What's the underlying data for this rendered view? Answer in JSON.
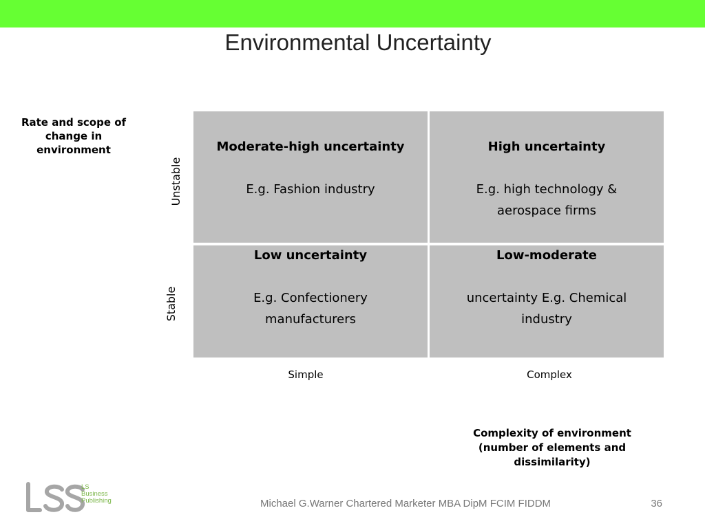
{
  "slide": {
    "title": "Environmental Uncertainty",
    "accent_color": "#66ff33",
    "cell_color": "#bfbfbf"
  },
  "y_axis": {
    "title": "Rate and scope of change in environment",
    "labels": [
      "Unstable",
      "Stable"
    ]
  },
  "x_axis": {
    "title": "Complexity of environment (number of elements and dissimilarity)",
    "labels": [
      "Simple",
      "Complex"
    ]
  },
  "matrix": {
    "top_left": {
      "heading": "Moderate-high uncertainty",
      "example": "E.g. Fashion industry"
    },
    "top_right": {
      "heading": "High uncertainty",
      "example": "E.g. high technology & aerospace firms"
    },
    "bottom_left": {
      "heading": "Low uncertainty",
      "example": "E.g. Confectionery manufacturers"
    },
    "bottom_right": {
      "heading": "Low-moderate",
      "example": "uncertainty E.g. Chemical industry"
    }
  },
  "logo": {
    "icon": "ls-logo-icon",
    "lines": [
      "LS",
      "Business",
      "Publishing"
    ]
  },
  "footer": {
    "text": "Michael G.Warner Chartered Marketer MBA DipM FCIM FIDDM",
    "page_number": "36"
  }
}
